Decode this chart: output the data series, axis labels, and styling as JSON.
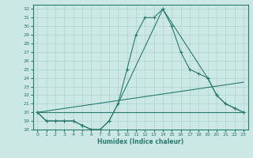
{
  "xlabel": "Humidex (Indice chaleur)",
  "bg_color": "#cce8e4",
  "line_color": "#2a7a6e",
  "grid_color": "#aed4cf",
  "xlim": [
    -0.5,
    23.5
  ],
  "ylim": [
    18,
    32.5
  ],
  "yticks": [
    18,
    19,
    20,
    21,
    22,
    23,
    24,
    25,
    26,
    27,
    28,
    29,
    30,
    31,
    32
  ],
  "xticks": [
    0,
    1,
    2,
    3,
    4,
    5,
    6,
    7,
    8,
    9,
    10,
    11,
    12,
    13,
    14,
    15,
    16,
    17,
    18,
    19,
    20,
    21,
    22,
    23
  ],
  "series": [
    {
      "x": [
        0,
        1,
        2,
        3,
        4,
        5,
        6,
        7,
        8,
        9,
        10,
        11,
        12,
        13,
        14,
        15,
        16,
        17,
        18,
        19,
        20,
        21,
        22,
        23
      ],
      "y": [
        20,
        19,
        19,
        19,
        19,
        18.5,
        18,
        18,
        19,
        21,
        25,
        29,
        31,
        31,
        32,
        30,
        27,
        25,
        24.5,
        24,
        22,
        21,
        20.5,
        20
      ],
      "marker": true
    },
    {
      "x": [
        0,
        1,
        2,
        3,
        4,
        5,
        6,
        7,
        8,
        9,
        14,
        19,
        20,
        21,
        22,
        23
      ],
      "y": [
        20,
        19,
        19,
        19,
        19,
        18.5,
        18,
        18,
        19,
        21,
        32,
        24,
        22,
        21,
        20.5,
        20
      ],
      "marker": true
    },
    {
      "x": [
        0,
        23
      ],
      "y": [
        20,
        20
      ],
      "marker": false
    },
    {
      "x": [
        0,
        23
      ],
      "y": [
        20,
        23.5
      ],
      "marker": false
    }
  ]
}
